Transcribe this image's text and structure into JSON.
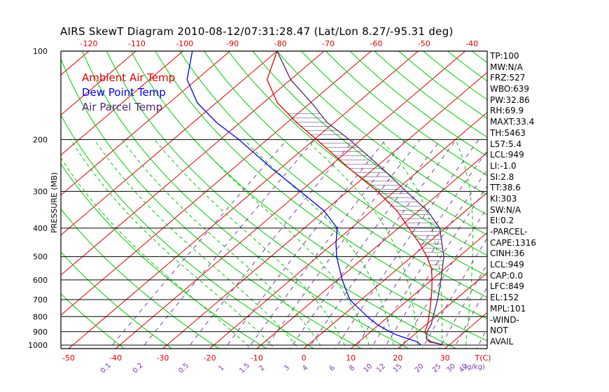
{
  "title": "AIRS SkewT Diagram 2010-08-12/07:31:28.47 (Lat/Lon 8.27/-95.31 deg)",
  "legend": {
    "ambient": "Ambient Air Temp",
    "dewpoint": "Dew Point Temp",
    "parcel": "Air Parcel Temp"
  },
  "colors": {
    "ambient": "#e00000",
    "dewpoint": "#0000dd",
    "parcel": "#4b2a6e",
    "isotherm": "#e00000",
    "dry_adiabat": "#00cc00",
    "moist_adiabat": "#00cc00",
    "mixing_ratio": "#7a3aa8",
    "frame": "#000000"
  },
  "ylabel": "PRESSURE (MB)",
  "stats": [
    "TP:100",
    "MW:N/A",
    "FRZ:527",
    "WBO:639",
    "PW:32.86",
    "RH:69.9",
    "MAXT:33.4",
    "TH:5463",
    "L57:5.4",
    "LCL:949",
    "LI:-1.0",
    "SI:2.8",
    "TT:38.6",
    "KI:303",
    "SW:N/A",
    "EI:0.2",
    "-PARCEL-",
    "CAPE:1316",
    "CINH:36",
    "LCL:949",
    "CAP:0.0",
    "LFC:849",
    "EL:152",
    "MPL:101",
    "-WIND-",
    "NOT",
    "AVAIL"
  ],
  "chart_data": {
    "type": "line",
    "title": "AIRS SkewT Diagram 2010-08-12/07:31:28.47 (Lat/Lon 8.27/-95.31 deg)",
    "ylabel": "PRESSURE (MB)",
    "y_scale": "log",
    "ylim": [
      1050,
      100
    ],
    "pressure_ticks": [
      100,
      200,
      300,
      400,
      500,
      600,
      700,
      800,
      900,
      1000
    ],
    "temp_ticks_top": [
      -120,
      -110,
      -100,
      -90,
      -80,
      -70,
      -60,
      -50,
      -40
    ],
    "temp_ticks_bottom": [
      -50,
      -40,
      -30,
      -20,
      -10,
      0,
      10,
      20,
      30
    ],
    "bottom_unit_label": "T(C)",
    "mixing_ratio_labels": [
      "0.1",
      "0.2",
      "0.5",
      "1",
      "1.5",
      "2",
      "3",
      "4",
      "6",
      "8",
      "10",
      "12",
      "15",
      "20",
      "25",
      "30",
      "40"
    ],
    "mixing_ratio_unit": "(g/kg)",
    "series": [
      {
        "name": "Ambient Air Temp",
        "key": "ambient",
        "points": [
          [
            1000,
            29.0
          ],
          [
            975,
            25.0
          ],
          [
            950,
            23.6
          ],
          [
            925,
            22.8
          ],
          [
            900,
            21.5
          ],
          [
            850,
            20.3
          ],
          [
            800,
            18.6
          ],
          [
            750,
            16.8
          ],
          [
            700,
            14.8
          ],
          [
            650,
            12.6
          ],
          [
            600,
            10.1
          ],
          [
            550,
            7.2
          ],
          [
            500,
            3.2
          ],
          [
            450,
            -1.8
          ],
          [
            400,
            -7.8
          ],
          [
            350,
            -14.5
          ],
          [
            300,
            -23.6
          ],
          [
            250,
            -35.5
          ],
          [
            200,
            -49.5
          ],
          [
            175,
            -58.0
          ],
          [
            150,
            -67.0
          ],
          [
            125,
            -75.0
          ],
          [
            100,
            -80.0
          ]
        ]
      },
      {
        "name": "Dew Point Temp",
        "key": "dewpoint",
        "points": [
          [
            1000,
            24.0
          ],
          [
            975,
            22.5
          ],
          [
            950,
            19.5
          ],
          [
            925,
            16.5
          ],
          [
            900,
            14.0
          ],
          [
            850,
            9.5
          ],
          [
            800,
            5.5
          ],
          [
            700,
            -2.5
          ],
          [
            600,
            -9.0
          ],
          [
            500,
            -16.0
          ],
          [
            450,
            -19.5
          ],
          [
            400,
            -23.0
          ],
          [
            350,
            -30.0
          ],
          [
            300,
            -40.0
          ],
          [
            250,
            -52.0
          ],
          [
            200,
            -66.0
          ],
          [
            175,
            -75.0
          ],
          [
            150,
            -84.0
          ],
          [
            125,
            -92.0
          ],
          [
            100,
            -98.0
          ]
        ]
      },
      {
        "name": "Air Parcel Temp",
        "key": "parcel",
        "points": [
          [
            1000,
            29.0
          ],
          [
            975,
            25.5
          ],
          [
            950,
            23.5
          ],
          [
            900,
            22.0
          ],
          [
            849,
            21.0
          ],
          [
            800,
            19.5
          ],
          [
            700,
            16.2
          ],
          [
            600,
            12.0
          ],
          [
            500,
            6.8
          ],
          [
            450,
            3.0
          ],
          [
            400,
            -1.2
          ],
          [
            350,
            -8.0
          ],
          [
            300,
            -17.5
          ],
          [
            250,
            -28.5
          ],
          [
            200,
            -42.5
          ],
          [
            175,
            -51.5
          ],
          [
            152,
            -59.0
          ],
          [
            125,
            -70.0
          ],
          [
            100,
            -80.0
          ]
        ]
      }
    ]
  }
}
